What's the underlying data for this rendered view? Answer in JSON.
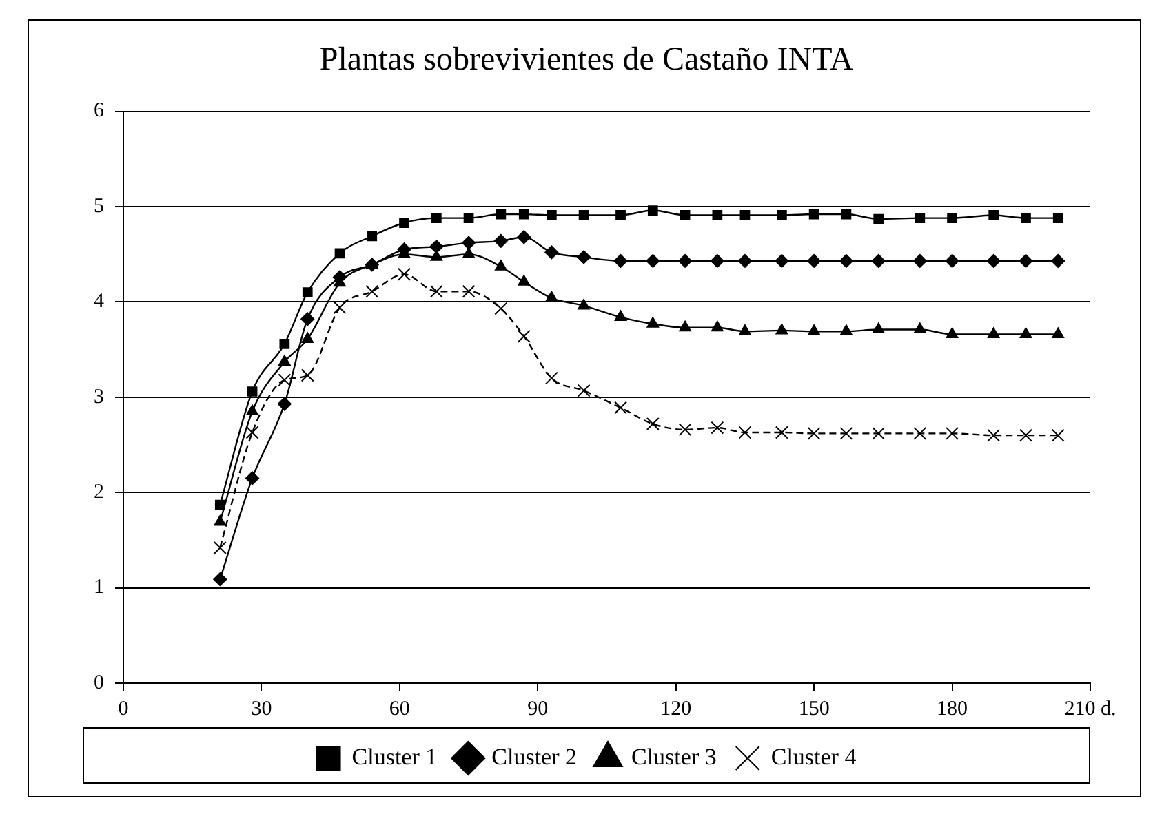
{
  "chart_data": {
    "type": "line",
    "title": "Plantas sobrevivientes de Castaño INTA",
    "x": [
      21,
      28,
      35,
      40,
      47,
      54,
      61,
      68,
      75,
      82,
      87,
      93,
      100,
      108,
      115,
      122,
      129,
      135,
      143,
      150,
      157,
      164,
      173,
      180,
      189,
      196,
      203
    ],
    "xlim": [
      0,
      210
    ],
    "xticks": [
      0,
      30,
      60,
      90,
      120,
      150,
      180,
      {
        "value": 210,
        "label": "210 d."
      }
    ],
    "ylim": [
      0,
      6
    ],
    "yticks": [
      0,
      1,
      2,
      3,
      4,
      5,
      6
    ],
    "grid": "y",
    "legend": "bottom",
    "series": [
      {
        "name": "Cluster 1",
        "color": "#000000",
        "marker": "square",
        "line_style": "solid",
        "values": [
          1.87,
          3.06,
          3.56,
          4.1,
          4.51,
          4.69,
          4.83,
          4.88,
          4.88,
          4.92,
          4.92,
          4.91,
          4.91,
          4.91,
          4.96,
          4.91,
          4.91,
          4.91,
          4.91,
          4.92,
          4.92,
          4.87,
          4.88,
          4.88,
          4.91,
          4.88,
          4.88
        ]
      },
      {
        "name": "Cluster 2",
        "color": "#000000",
        "marker": "diamond",
        "line_style": "solid",
        "values": [
          1.09,
          2.15,
          2.93,
          3.82,
          4.26,
          4.39,
          4.55,
          4.58,
          4.62,
          4.64,
          4.68,
          4.52,
          4.47,
          4.43,
          4.43,
          4.43,
          4.43,
          4.43,
          4.43,
          4.43,
          4.43,
          4.43,
          4.43,
          4.43,
          4.43,
          4.43,
          4.43
        ]
      },
      {
        "name": "Cluster 3",
        "color": "#000000",
        "marker": "triangle",
        "line_style": "solid",
        "values": [
          1.69,
          2.85,
          3.37,
          3.61,
          4.2,
          4.39,
          4.5,
          4.47,
          4.5,
          4.37,
          4.21,
          4.04,
          3.96,
          3.84,
          3.77,
          3.73,
          3.73,
          3.69,
          3.7,
          3.69,
          3.69,
          3.71,
          3.71,
          3.66,
          3.66,
          3.66,
          3.66
        ]
      },
      {
        "name": "Cluster 4",
        "color": "#000000",
        "marker": "cross",
        "line_style": "dashed",
        "values": [
          1.42,
          2.63,
          3.18,
          3.23,
          3.94,
          4.11,
          4.29,
          4.11,
          4.11,
          3.93,
          3.64,
          3.2,
          3.07,
          2.89,
          2.72,
          2.66,
          2.68,
          2.63,
          2.63,
          2.62,
          2.62,
          2.62,
          2.62,
          2.62,
          2.6,
          2.6,
          2.6
        ]
      }
    ]
  }
}
